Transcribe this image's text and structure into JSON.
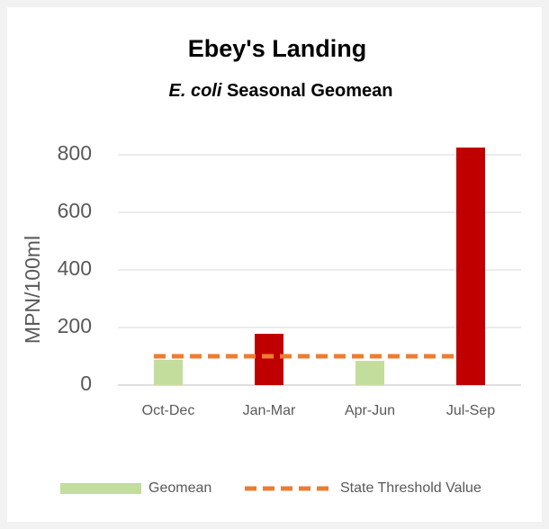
{
  "chart_data": {
    "type": "bar",
    "title": "Ebey's Landing",
    "subtitle": {
      "italic": "E. coli",
      "text": "Seasonal Geomean"
    },
    "y_axis_label": "MPN/100ml",
    "categories": [
      "Oct-Dec",
      "Jan-Mar",
      "Apr-Jun",
      "Jul-Sep"
    ],
    "series": [
      {
        "name": "Geomean",
        "color": "#c3dd9c",
        "values": [
          88,
          178,
          84,
          825
        ],
        "colors": [
          "#c3dd9c",
          "#c00000",
          "#c3dd9c",
          "#c00000"
        ]
      }
    ],
    "threshold": {
      "name": "State Threshold Value",
      "value": 100,
      "color": "#ed7d31"
    },
    "ylim": [
      0,
      800
    ],
    "yticks": [
      0,
      200,
      400,
      600,
      800
    ],
    "grid": true,
    "legend": "bottom"
  }
}
